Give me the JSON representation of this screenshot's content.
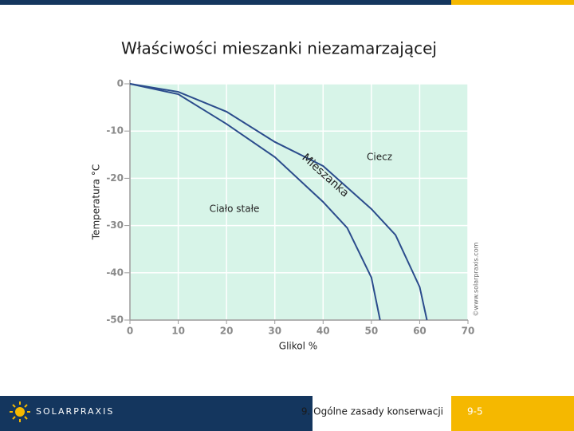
{
  "chart_data": {
    "type": "line",
    "title": "Właściwości mieszanki niezamarzającej",
    "xlabel": "Glikol %",
    "ylabel": "Temperatura °C",
    "watermark": "©www.solarpraxis.com",
    "annotations": [
      "Ciecz",
      "Ciało stałe",
      "Mieszanka"
    ],
    "xlim": [
      0,
      70
    ],
    "ylim": [
      -50,
      0
    ],
    "xticks": [
      0,
      10,
      20,
      30,
      40,
      50,
      60,
      70
    ],
    "yticks": [
      0,
      -10,
      -20,
      -30,
      -40,
      -50
    ],
    "grid": true,
    "background": "#d7f4e8",
    "series": [
      {
        "color": "#2b4c8c",
        "x": [
          0,
          10,
          20,
          30,
          40,
          50,
          55,
          60,
          61.5
        ],
        "values": [
          0,
          -1.7,
          -5.9,
          -12.3,
          -17.4,
          -26.5,
          -32,
          -43,
          -50
        ]
      },
      {
        "color": "#2b4c8c",
        "x": [
          0,
          10,
          20,
          30,
          40,
          45,
          50,
          51.8
        ],
        "values": [
          0,
          -2.2,
          -8.5,
          -15.5,
          -25,
          -30.5,
          -41,
          -50
        ]
      }
    ]
  },
  "footer": {
    "logo": "SOLARPRAXIS",
    "section": "9. Ogólne zasady konserwacji",
    "page": "9-5"
  }
}
